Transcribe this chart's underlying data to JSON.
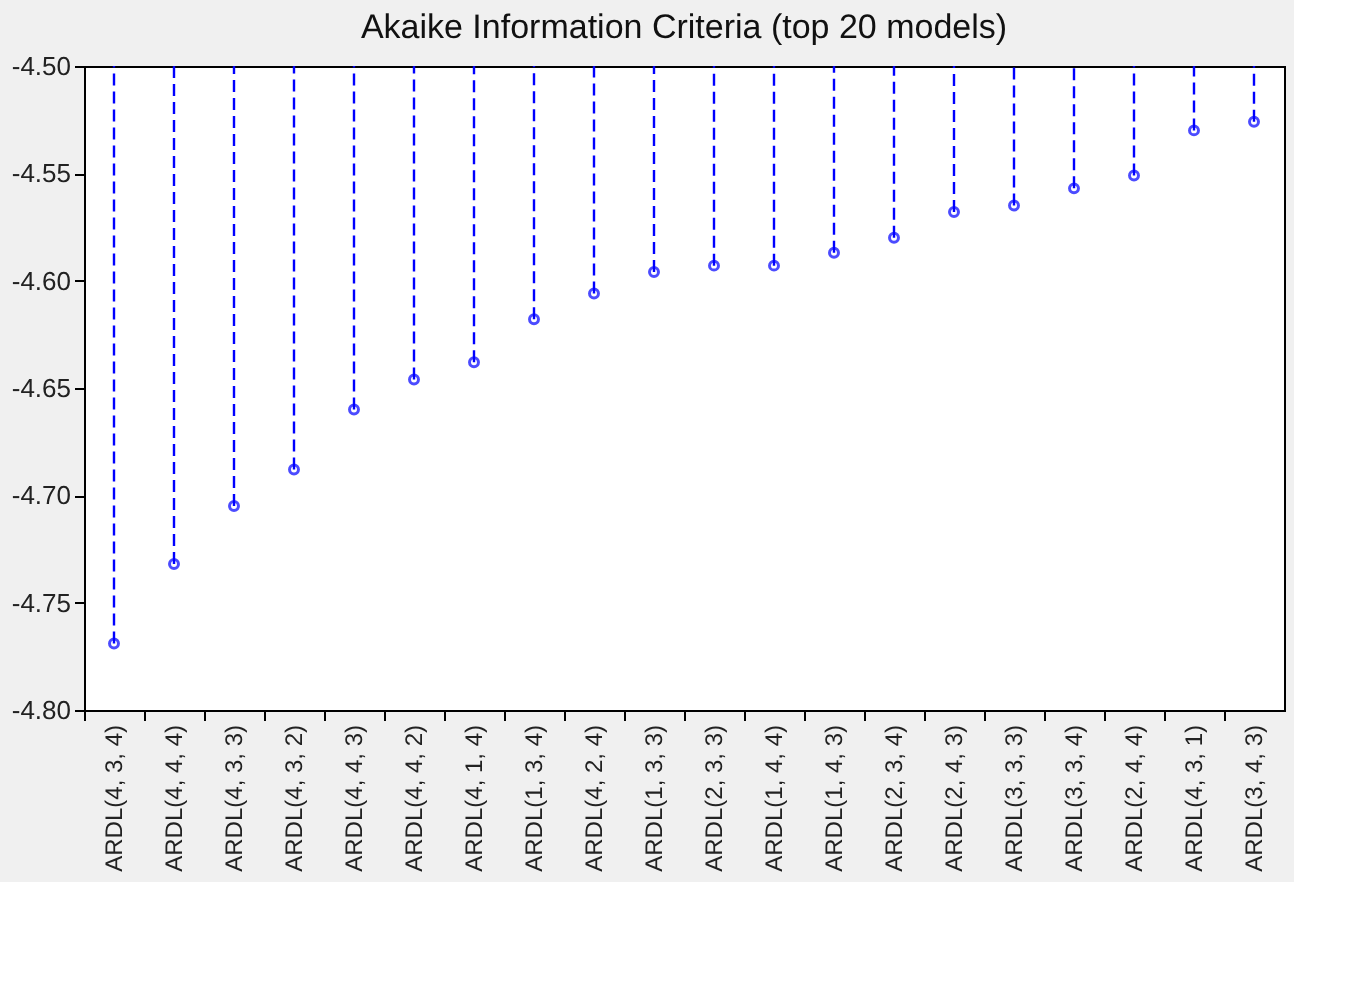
{
  "chart_data": {
    "type": "lollipop",
    "title": "Akaike Information Criteria (top 20 models)",
    "categories": [
      "ARDL(4, 3, 4)",
      "ARDL(4, 4, 4)",
      "ARDL(4, 3, 3)",
      "ARDL(4, 3, 2)",
      "ARDL(4, 4, 3)",
      "ARDL(4, 4, 2)",
      "ARDL(4, 1, 4)",
      "ARDL(1, 3, 4)",
      "ARDL(4, 2, 4)",
      "ARDL(1, 3, 3)",
      "ARDL(2, 3, 3)",
      "ARDL(1, 4, 4)",
      "ARDL(1, 4, 3)",
      "ARDL(2, 3, 4)",
      "ARDL(2, 4, 3)",
      "ARDL(3, 3, 3)",
      "ARDL(3, 3, 4)",
      "ARDL(2, 4, 4)",
      "ARDL(4, 3, 1)",
      "ARDL(3, 4, 3)"
    ],
    "values": [
      -4.769,
      -4.732,
      -4.705,
      -4.688,
      -4.66,
      -4.646,
      -4.638,
      -4.618,
      -4.606,
      -4.596,
      -4.593,
      -4.593,
      -4.587,
      -4.58,
      -4.568,
      -4.565,
      -4.557,
      -4.551,
      -4.53,
      -4.526
    ],
    "color": "#0000ff",
    "ylim": [
      -4.8,
      -4.5
    ],
    "yticks": [
      {
        "value": -4.8,
        "label": "-4.80"
      },
      {
        "value": -4.75,
        "label": "-4.75"
      },
      {
        "value": -4.7,
        "label": "-4.70"
      },
      {
        "value": -4.65,
        "label": "-4.65"
      },
      {
        "value": -4.6,
        "label": "-4.60"
      },
      {
        "value": -4.55,
        "label": "-4.55"
      },
      {
        "value": -4.5,
        "label": "-4.50"
      }
    ],
    "line_style": "dashed",
    "marker": "circle"
  }
}
